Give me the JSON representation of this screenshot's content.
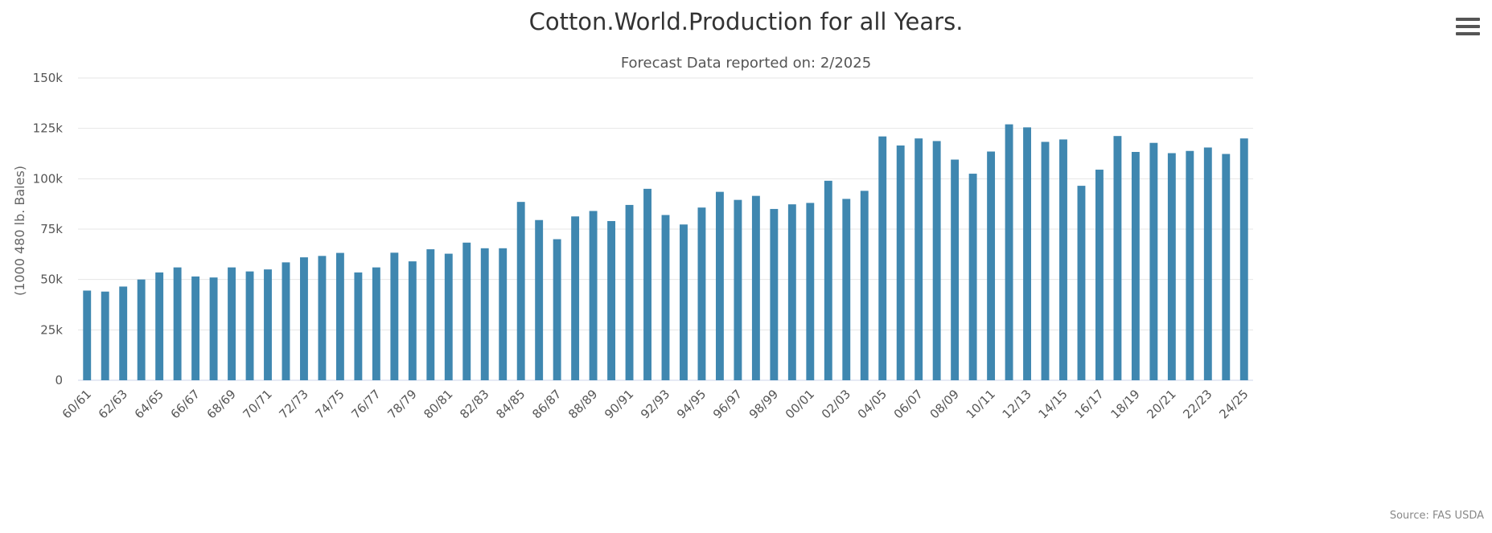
{
  "chart_title": "Cotton.World.Production for all Years.",
  "subtitle": "Forecast Data reported on: 2/2025",
  "source": "Source: FAS USDA",
  "menu_icon": "hamburger-menu-icon",
  "colors": {
    "bar": "#3f87b0",
    "grid": "#e6e6e6",
    "axis": "#ccd6eb"
  },
  "chart_data": {
    "type": "bar",
    "title": "Cotton.World.Production for all Years.",
    "subtitle": "Forecast Data reported on: 2/2025",
    "ylabel": "(1000 480 lb. Bales)",
    "xlabel": "",
    "ylim": [
      0,
      150000
    ],
    "yticks": [
      0,
      25000,
      50000,
      75000,
      100000,
      125000,
      150000
    ],
    "ytick_labels": [
      "0",
      "25k",
      "50k",
      "75k",
      "100k",
      "125k",
      "150k"
    ],
    "grid": true,
    "categories": [
      "60/61",
      "61/62",
      "62/63",
      "63/64",
      "64/65",
      "65/66",
      "66/67",
      "67/68",
      "68/69",
      "69/70",
      "70/71",
      "71/72",
      "72/73",
      "73/74",
      "74/75",
      "75/76",
      "76/77",
      "77/78",
      "78/79",
      "79/80",
      "80/81",
      "81/82",
      "82/83",
      "83/84",
      "84/85",
      "85/86",
      "86/87",
      "87/88",
      "88/89",
      "89/90",
      "90/91",
      "91/92",
      "92/93",
      "93/94",
      "94/95",
      "95/96",
      "96/97",
      "97/98",
      "98/99",
      "99/00",
      "00/01",
      "01/02",
      "02/03",
      "03/04",
      "04/05",
      "05/06",
      "06/07",
      "07/08",
      "08/09",
      "09/10",
      "10/11",
      "11/12",
      "12/13",
      "13/14",
      "14/15",
      "15/16",
      "16/17",
      "17/18",
      "18/19",
      "19/20",
      "20/21",
      "21/22",
      "22/23",
      "23/24",
      "24/25"
    ],
    "x_tick_labels_shown": [
      "60/61",
      "62/63",
      "64/65",
      "66/67",
      "68/69",
      "70/71",
      "72/73",
      "74/75",
      "76/77",
      "78/79",
      "80/81",
      "82/83",
      "84/85",
      "86/87",
      "88/89",
      "90/91",
      "92/93",
      "94/95",
      "96/97",
      "98/99",
      "00/01",
      "02/03",
      "04/05",
      "06/07",
      "08/09",
      "10/11",
      "12/13",
      "14/15",
      "16/17",
      "18/19",
      "20/21",
      "22/23",
      "24/25"
    ],
    "series": [
      {
        "values": [
          44500,
          44000,
          46500,
          50000,
          53500,
          56000,
          51500,
          51000,
          56000,
          54000,
          55000,
          58500,
          61000,
          61700,
          63200,
          53500,
          56000,
          63300,
          59000,
          65000,
          62800,
          68300,
          65500,
          65500,
          88500,
          79500,
          70000,
          81300,
          84000,
          79000,
          87000,
          95000,
          82000,
          77300,
          85700,
          93500,
          89500,
          91500,
          85000,
          87300,
          88000,
          99000,
          90000,
          94000,
          121000,
          116500,
          120000,
          118700,
          109500,
          102500,
          113500,
          127000,
          125500,
          118300,
          119500,
          96500,
          104500,
          121200,
          113300,
          117800,
          112700,
          113800,
          115500,
          112300,
          120000
        ]
      }
    ]
  }
}
